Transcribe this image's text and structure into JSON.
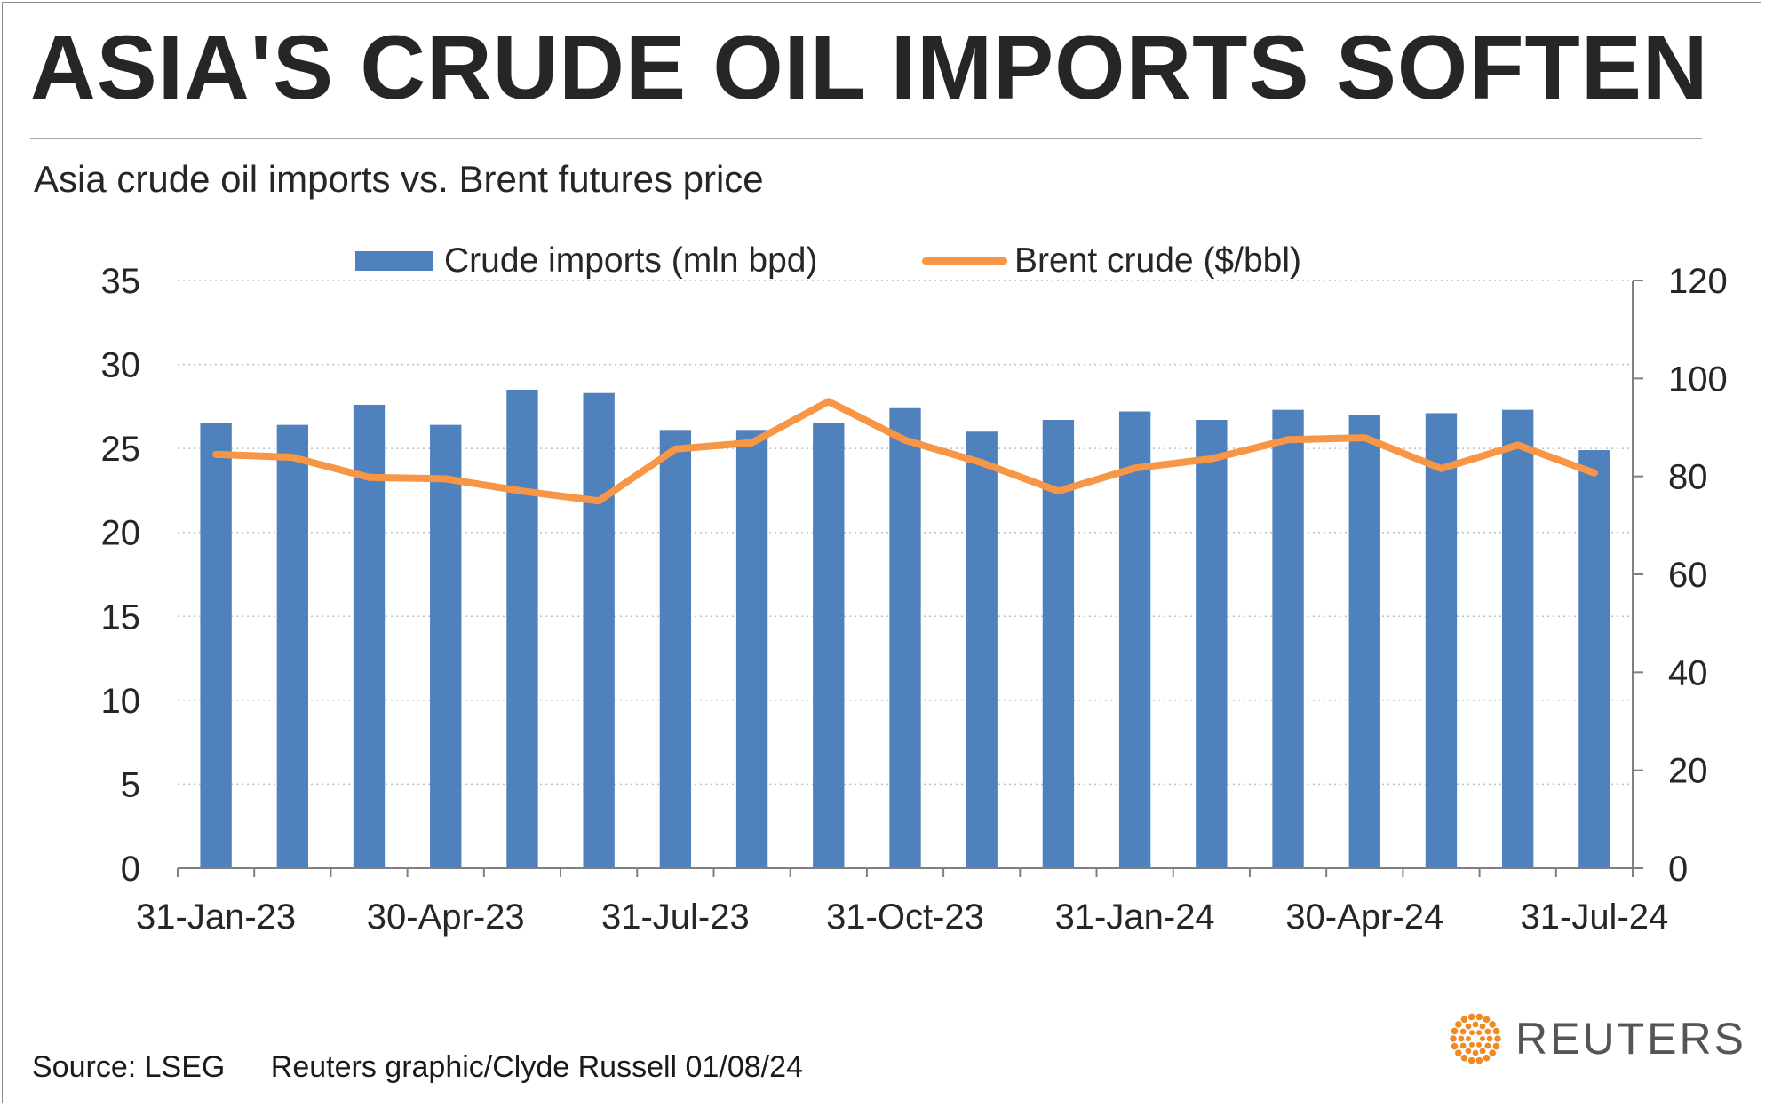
{
  "title": "ASIA'S CRUDE OIL IMPORTS SOFTEN",
  "subtitle": "Asia crude oil imports vs. Brent futures price",
  "legend": {
    "bar_label": "Crude imports (mln bpd)",
    "line_label": "Brent crude ($/bbl)"
  },
  "colors": {
    "bars": "#4f81bd",
    "line": "#f79646",
    "text": "#262626",
    "grid": "#bfbfbf"
  },
  "footer": {
    "source": "Source: LSEG",
    "credit": "Reuters graphic/Clyde Russell 01/08/24"
  },
  "logo": {
    "text": "REUTERS",
    "icon": "reuters-dot-logo"
  },
  "chart_data": {
    "type": "bar",
    "categories": [
      "Jan-23",
      "Feb-23",
      "Mar-23",
      "Apr-23",
      "May-23",
      "Jun-23",
      "Jul-23",
      "Aug-23",
      "Sep-23",
      "Oct-23",
      "Nov-23",
      "Dec-23",
      "Jan-24",
      "Feb-24",
      "Mar-24",
      "Apr-24",
      "May-24",
      "Jun-24",
      "Jul-24"
    ],
    "x_tick_labels": [
      {
        "index": 0,
        "label": "31-Jan-23"
      },
      {
        "index": 3,
        "label": "30-Apr-23"
      },
      {
        "index": 6,
        "label": "31-Jul-23"
      },
      {
        "index": 9,
        "label": "31-Oct-23"
      },
      {
        "index": 12,
        "label": "31-Jan-24"
      },
      {
        "index": 15,
        "label": "30-Apr-24"
      },
      {
        "index": 18,
        "label": "31-Jul-24"
      }
    ],
    "series": [
      {
        "name": "Crude imports (mln bpd)",
        "type": "bar",
        "axis": "left",
        "values": [
          26.5,
          26.4,
          27.6,
          26.4,
          28.5,
          28.3,
          26.1,
          26.1,
          26.5,
          27.4,
          26.0,
          26.7,
          27.2,
          26.7,
          27.3,
          27.0,
          27.1,
          27.3,
          24.9
        ]
      },
      {
        "name": "Brent crude ($/bbl)",
        "type": "line",
        "axis": "right",
        "values": [
          84.5,
          83.9,
          79.8,
          79.5,
          77.0,
          75.0,
          85.6,
          86.9,
          95.3,
          87.4,
          82.8,
          77.0,
          81.7,
          83.6,
          87.5,
          87.9,
          81.6,
          86.4,
          80.7
        ]
      }
    ],
    "y_left": {
      "min": 0,
      "max": 35,
      "step": 5,
      "ticks": [
        "0",
        "5",
        "10",
        "15",
        "20",
        "25",
        "30",
        "35"
      ]
    },
    "y_right": {
      "min": 0,
      "max": 120,
      "step": 20,
      "ticks": [
        "0",
        "20",
        "40",
        "60",
        "80",
        "100",
        "120"
      ]
    },
    "grid": "horizontal-dotted",
    "legend_position": "top-center"
  }
}
